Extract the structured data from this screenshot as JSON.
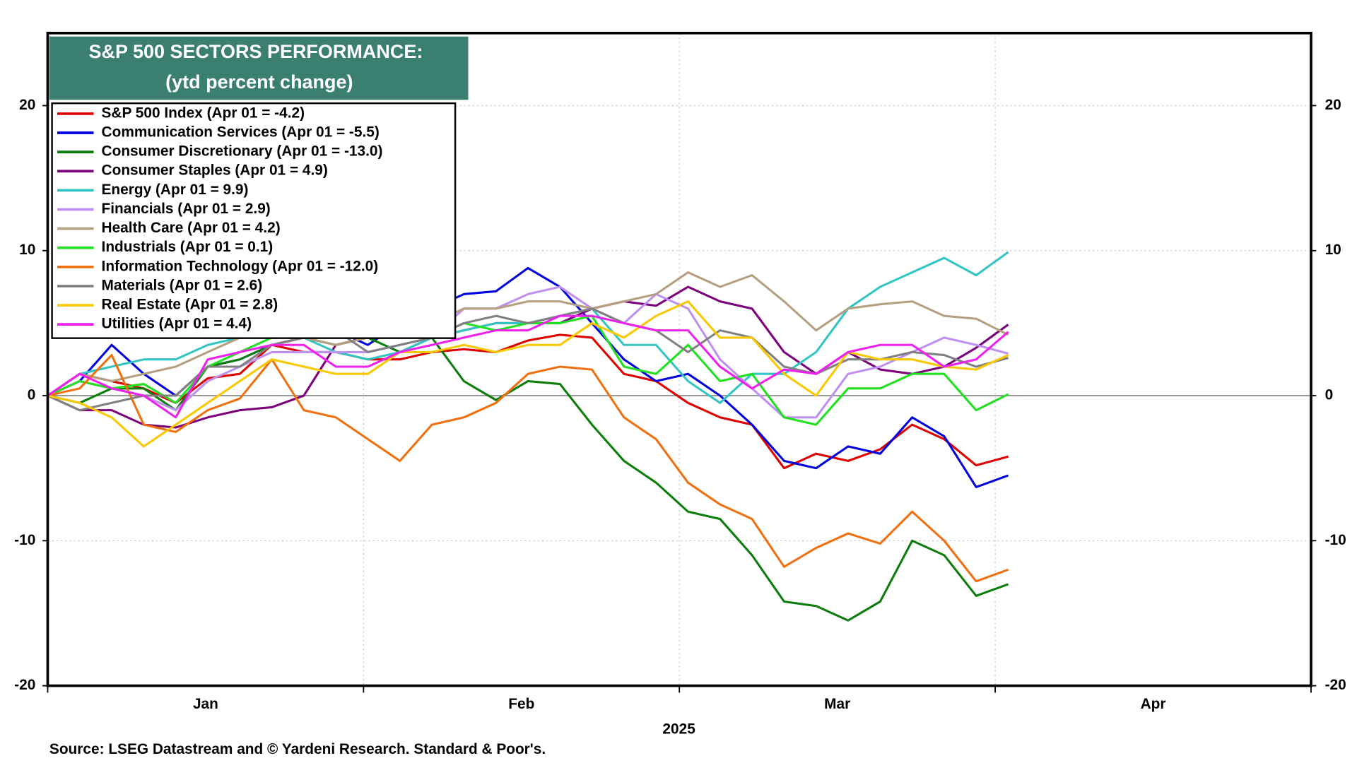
{
  "chart_data": {
    "type": "line",
    "title": [
      "S&P 500 SECTORS PERFORMANCE:",
      "(ytd percent change)"
    ],
    "source": "Source: LSEG Datastream and © Yardeni Research. Standard & Poor's.",
    "months": [
      "Jan",
      "Feb",
      "Mar",
      "Apr"
    ],
    "year": "2025",
    "ylim": [
      -20,
      25
    ],
    "yticks": [
      -20,
      -10,
      0,
      10,
      20
    ],
    "grid": true,
    "series": [
      {
        "name": "S&P 500 Index (Apr 01 = -4.2)",
        "color": "#e00000",
        "values": [
          0,
          1.5,
          1,
          0.5,
          -0.5,
          1.2,
          1.5,
          3.5,
          3,
          3,
          2.5,
          2.5,
          3,
          3.2,
          3,
          3.8,
          4.2,
          4,
          1.5,
          1,
          -0.5,
          -1.5,
          -2,
          -5,
          -4,
          -4.5,
          -3.7,
          -2,
          -3,
          -4.8,
          -4.2
        ]
      },
      {
        "name": "Communication Services (Apr 01 = -5.5)",
        "color": "#0000e0",
        "values": [
          0,
          1,
          3.5,
          1.5,
          0,
          2,
          2.5,
          3.5,
          4,
          4.5,
          3.5,
          5,
          6,
          7,
          7.2,
          8.8,
          7.5,
          5,
          2.5,
          1,
          1.5,
          0,
          -2,
          -4.5,
          -5,
          -3.5,
          -4,
          -1.5,
          -2.8,
          -6.3,
          -5.5
        ]
      },
      {
        "name": "Consumer Discretionary (Apr 01 = -13.0)",
        "color": "#0a7d0a",
        "values": [
          0,
          -0.5,
          0.5,
          0.5,
          -1,
          2,
          2.5,
          3.5,
          4,
          3.5,
          4,
          3,
          4,
          1,
          -0.3,
          1,
          0.8,
          -2,
          -4.5,
          -6,
          -8,
          -8.5,
          -11,
          -14.2,
          -14.5,
          -15.5,
          -14.2,
          -10,
          -11,
          -13.8,
          -13
        ]
      },
      {
        "name": "Consumer Staples (Apr 01 = 4.9)",
        "color": "#7b007b",
        "values": [
          0,
          -1,
          -1,
          -2,
          -2.2,
          -1.5,
          -1,
          -0.8,
          0,
          3.5,
          4,
          4,
          4,
          4.5,
          5,
          5,
          5,
          6,
          6.5,
          6.2,
          7.5,
          6.5,
          6,
          3,
          1.5,
          3,
          1.8,
          1.5,
          2,
          3.3,
          4.9
        ]
      },
      {
        "name": "Energy (Apr 01 = 9.9)",
        "color": "#33c4c4",
        "values": [
          0,
          1.5,
          2,
          2.5,
          2.5,
          3.5,
          4,
          4.5,
          4,
          3,
          2.5,
          3,
          4,
          4.5,
          5,
          5,
          5.5,
          6,
          3.5,
          3.5,
          1,
          -0.5,
          1.5,
          1.5,
          3,
          6,
          7.5,
          8.5,
          9.5,
          8.3,
          9.9
        ]
      },
      {
        "name": "Financials (Apr 01 = 2.9)",
        "color": "#c090f0",
        "values": [
          0,
          1,
          0.5,
          0,
          -1,
          1,
          2,
          3,
          3,
          3,
          3,
          3.5,
          4,
          6,
          6,
          7,
          7.5,
          6,
          5,
          7,
          6,
          2.5,
          0.5,
          -1.5,
          -1.5,
          1.5,
          2,
          3,
          4,
          3.5,
          2.9
        ]
      },
      {
        "name": "Health Care (Apr 01 = 4.2)",
        "color": "#b4a080",
        "values": [
          0,
          1.5,
          1,
          1.5,
          2,
          3,
          4,
          4,
          4,
          3.5,
          4,
          4,
          5,
          6,
          6,
          6.5,
          6.5,
          6,
          6.5,
          7,
          8.5,
          7.5,
          8.3,
          6.5,
          4.5,
          6,
          6.3,
          6.5,
          5.5,
          5.3,
          4.2
        ]
      },
      {
        "name": "Industrials (Apr 01 = 0.1)",
        "color": "#20e020",
        "values": [
          0,
          1,
          0.5,
          0.8,
          -0.5,
          2,
          3,
          4,
          4,
          4.5,
          4,
          4,
          4,
          5,
          4.5,
          5,
          5,
          5.5,
          2,
          1.5,
          3.5,
          1,
          1.5,
          -1.5,
          -2,
          0.5,
          0.5,
          1.5,
          1.5,
          -1,
          0.1
        ]
      },
      {
        "name": "Information Technology (Apr 01 = -12.0)",
        "color": "#f07010",
        "values": [
          0,
          0.5,
          2.8,
          -2,
          -2.5,
          -1,
          -0.2,
          2.5,
          -1,
          -1.5,
          -3,
          -4.5,
          -2,
          -1.5,
          -0.5,
          1.5,
          2,
          1.8,
          -1.5,
          -3,
          -6,
          -7.5,
          -8.5,
          -11.8,
          -10.5,
          -9.5,
          -10.2,
          -8,
          -10,
          -12.8,
          -12
        ]
      },
      {
        "name": "Materials (Apr 01 = 2.6)",
        "color": "#808080",
        "values": [
          0,
          -1,
          -0.5,
          0,
          0,
          2,
          2,
          3.5,
          4,
          4.5,
          3,
          3.5,
          4,
          5,
          5.5,
          5,
          5.5,
          6,
          5,
          4.5,
          3,
          4.5,
          4,
          2,
          1.5,
          2.5,
          2.5,
          3,
          2.8,
          2,
          2.6
        ]
      },
      {
        "name": "Real Estate (Apr 01 = 2.8)",
        "color": "#f8c800",
        "values": [
          0,
          -0.5,
          -1.5,
          -3.5,
          -2,
          -0.5,
          1,
          2.5,
          2,
          1.5,
          1.5,
          3,
          3,
          3.5,
          3,
          3.5,
          3.5,
          5,
          4,
          5.5,
          6.5,
          4,
          4,
          1.5,
          0,
          3,
          2.5,
          2.5,
          2,
          1.8,
          2.8
        ]
      },
      {
        "name": "Utilities (Apr 01 = 4.4)",
        "color": "#f020f0",
        "values": [
          0,
          1.5,
          0.5,
          0,
          -1.5,
          2.5,
          3,
          3.5,
          3.5,
          2,
          2,
          3,
          3.5,
          4,
          4.5,
          4.5,
          5.5,
          5.5,
          5,
          4.5,
          4.5,
          2,
          0.5,
          1.8,
          1.5,
          3,
          3.5,
          3.5,
          2,
          2.5,
          4.4
        ]
      }
    ]
  }
}
